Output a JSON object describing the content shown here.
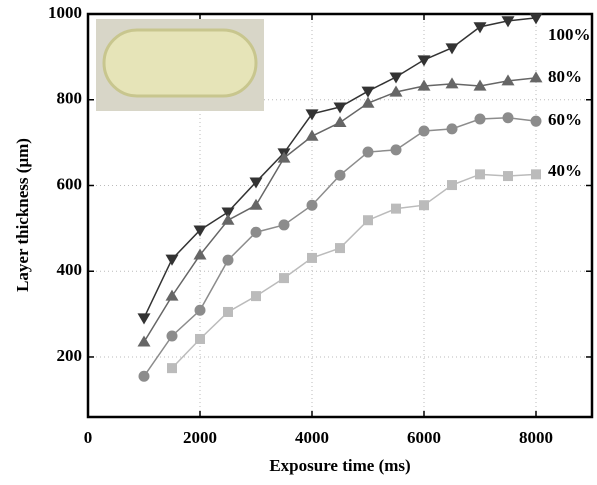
{
  "chart_data": {
    "type": "line",
    "x_label": "Exposure time (ms)",
    "y_label": "Layer thickness (μm)",
    "xlim": [
      0,
      9000
    ],
    "xticks": [
      0,
      2000,
      4000,
      6000,
      8000
    ],
    "ylim": [
      60,
      1000
    ],
    "yticks": [
      200,
      400,
      600,
      800,
      1000
    ],
    "grid": true,
    "series": [
      {
        "name": "100%",
        "color": "#333333",
        "marker": "triangle-down",
        "x": [
          1000,
          1500,
          2000,
          2500,
          3000,
          3500,
          4000,
          4500,
          5000,
          5500,
          6000,
          6500,
          7000,
          7500,
          8000
        ],
        "values": [
          291,
          428,
          496,
          538,
          608,
          676,
          767,
          783,
          820,
          853,
          893,
          921,
          970,
          984,
          991
        ]
      },
      {
        "name": "80%",
        "color": "#666666",
        "marker": "triangle-up",
        "x": [
          1000,
          1500,
          2000,
          2500,
          3000,
          3500,
          4000,
          4500,
          5000,
          5500,
          6000,
          6500,
          7000,
          7500,
          8000
        ],
        "values": [
          235,
          342,
          438,
          519,
          554,
          664,
          715,
          747,
          792,
          818,
          832,
          837,
          832,
          844,
          851
        ]
      },
      {
        "name": "60%",
        "color": "#8c8c8c",
        "marker": "circle",
        "x": [
          1000,
          1500,
          2000,
          2500,
          3000,
          3500,
          4000,
          4500,
          5000,
          5500,
          6000,
          6500,
          7000,
          7500,
          8000
        ],
        "values": [
          155,
          249,
          309,
          426,
          491,
          508,
          554,
          624,
          678,
          683,
          727,
          732,
          755,
          758,
          750
        ]
      },
      {
        "name": "40%",
        "color": "#bbbbbb",
        "marker": "square",
        "x": [
          1500,
          2000,
          2500,
          3000,
          3500,
          4000,
          4500,
          5000,
          5500,
          6000,
          6500,
          7000,
          7500,
          8000
        ],
        "values": [
          174,
          242,
          305,
          342,
          384,
          431,
          454,
          519,
          546,
          554,
          601,
          626,
          622,
          626
        ]
      }
    ]
  }
}
